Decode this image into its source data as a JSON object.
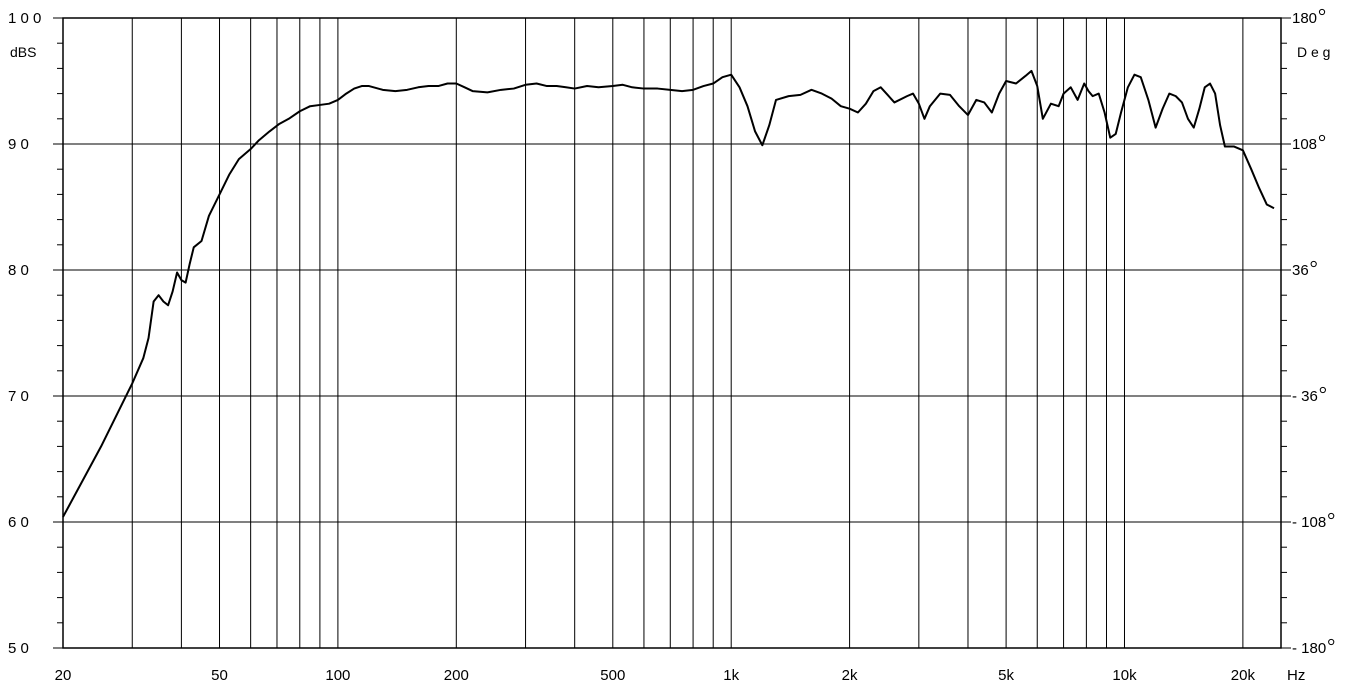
{
  "chart_data": {
    "type": "line",
    "title": "",
    "xscale": "log",
    "xlim": [
      20,
      25000
    ],
    "ylim": [
      50,
      100
    ],
    "y2lim": [
      -180,
      180
    ],
    "grid": true,
    "ylabel_left": "dBS",
    "ylabel_right": "D e g",
    "x_unit": "Hz",
    "x_ticks": [
      {
        "value": 20,
        "label": "20"
      },
      {
        "value": 50,
        "label": "50"
      },
      {
        "value": 100,
        "label": "100"
      },
      {
        "value": 200,
        "label": "200"
      },
      {
        "value": 500,
        "label": "500"
      },
      {
        "value": 1000,
        "label": "1k"
      },
      {
        "value": 2000,
        "label": "2k"
      },
      {
        "value": 5000,
        "label": "5k"
      },
      {
        "value": 10000,
        "label": "10k"
      },
      {
        "value": 20000,
        "label": "20k"
      }
    ],
    "y_ticks_left": [
      {
        "value": 100,
        "label": "1 0 0"
      },
      {
        "value": 90,
        "label": "9 0"
      },
      {
        "value": 80,
        "label": "8 0"
      },
      {
        "value": 70,
        "label": "7 0"
      },
      {
        "value": 60,
        "label": "6 0"
      },
      {
        "value": 50,
        "label": "5 0"
      }
    ],
    "y_ticks_right": [
      {
        "value": 180,
        "label": "180"
      },
      {
        "value": 108,
        "label": "108"
      },
      {
        "value": 36,
        "label": "36"
      },
      {
        "value": -36,
        "label": "- 36"
      },
      {
        "value": -108,
        "label": "- 108"
      },
      {
        "value": -180,
        "label": "- 180"
      }
    ],
    "series": [
      {
        "x": [
          20,
          25,
          30,
          32,
          33,
          34,
          35,
          36,
          37,
          38,
          39,
          40,
          41,
          42,
          43,
          45,
          47,
          50,
          53,
          56,
          60,
          63,
          67,
          71,
          75,
          80,
          85,
          90,
          95,
          100,
          105,
          110,
          115,
          120,
          130,
          140,
          150,
          160,
          170,
          180,
          190,
          200,
          210,
          220,
          240,
          260,
          280,
          300,
          320,
          340,
          360,
          380,
          400,
          430,
          460,
          500,
          530,
          560,
          600,
          650,
          700,
          750,
          800,
          850,
          900,
          950,
          1000,
          1050,
          1100,
          1150,
          1200,
          1250,
          1300,
          1400,
          1500,
          1600,
          1700,
          1800,
          1900,
          2000,
          2100,
          2200,
          2300,
          2400,
          2600,
          2800,
          2900,
          3000,
          3100,
          3200,
          3400,
          3600,
          3800,
          4000,
          4200,
          4400,
          4600,
          4800,
          5000,
          5300,
          5600,
          5800,
          6000,
          6200,
          6500,
          6800,
          7000,
          7300,
          7600,
          7900,
          8100,
          8300,
          8600,
          8900,
          9200,
          9500,
          9800,
          10200,
          10600,
          11000,
          11500,
          12000,
          12500,
          13000,
          13500,
          14000,
          14500,
          15000,
          15500,
          16000,
          16500,
          17000,
          17500,
          18000,
          19000,
          20000,
          21000,
          22000,
          23000,
          24000
        ],
        "y": [
          60.4,
          66.0,
          71.0,
          73.0,
          74.6,
          77.5,
          78.0,
          77.5,
          77.2,
          78.3,
          79.8,
          79.2,
          79.0,
          80.5,
          81.8,
          82.3,
          84.3,
          86.0,
          87.6,
          88.8,
          89.6,
          90.3,
          91.0,
          91.6,
          92.0,
          92.6,
          93.0,
          93.1,
          93.2,
          93.5,
          94.0,
          94.4,
          94.6,
          94.6,
          94.3,
          94.2,
          94.3,
          94.5,
          94.6,
          94.6,
          94.8,
          94.8,
          94.5,
          94.2,
          94.1,
          94.3,
          94.4,
          94.7,
          94.8,
          94.6,
          94.6,
          94.5,
          94.4,
          94.6,
          94.5,
          94.6,
          94.7,
          94.5,
          94.4,
          94.4,
          94.3,
          94.2,
          94.3,
          94.6,
          94.8,
          95.3,
          95.5,
          94.5,
          93.0,
          91.0,
          89.9,
          91.5,
          93.5,
          93.8,
          93.9,
          94.3,
          94.0,
          93.6,
          93.0,
          92.8,
          92.5,
          93.2,
          94.2,
          94.5,
          93.3,
          93.8,
          94.0,
          93.2,
          92.0,
          93.0,
          94.0,
          93.9,
          93.0,
          92.3,
          93.5,
          93.3,
          92.5,
          94.0,
          95.0,
          94.8,
          95.4,
          95.8,
          94.6,
          92.0,
          93.2,
          93.0,
          94.0,
          94.5,
          93.5,
          94.8,
          94.2,
          93.8,
          94.0,
          92.5,
          90.5,
          90.8,
          92.5,
          94.5,
          95.5,
          95.3,
          93.5,
          91.3,
          92.8,
          94.0,
          93.8,
          93.3,
          92.0,
          91.3,
          92.8,
          94.5,
          94.8,
          94.0,
          91.5,
          89.8,
          89.8,
          89.5,
          88.0,
          86.5,
          85.2,
          84.9
        ]
      }
    ]
  }
}
